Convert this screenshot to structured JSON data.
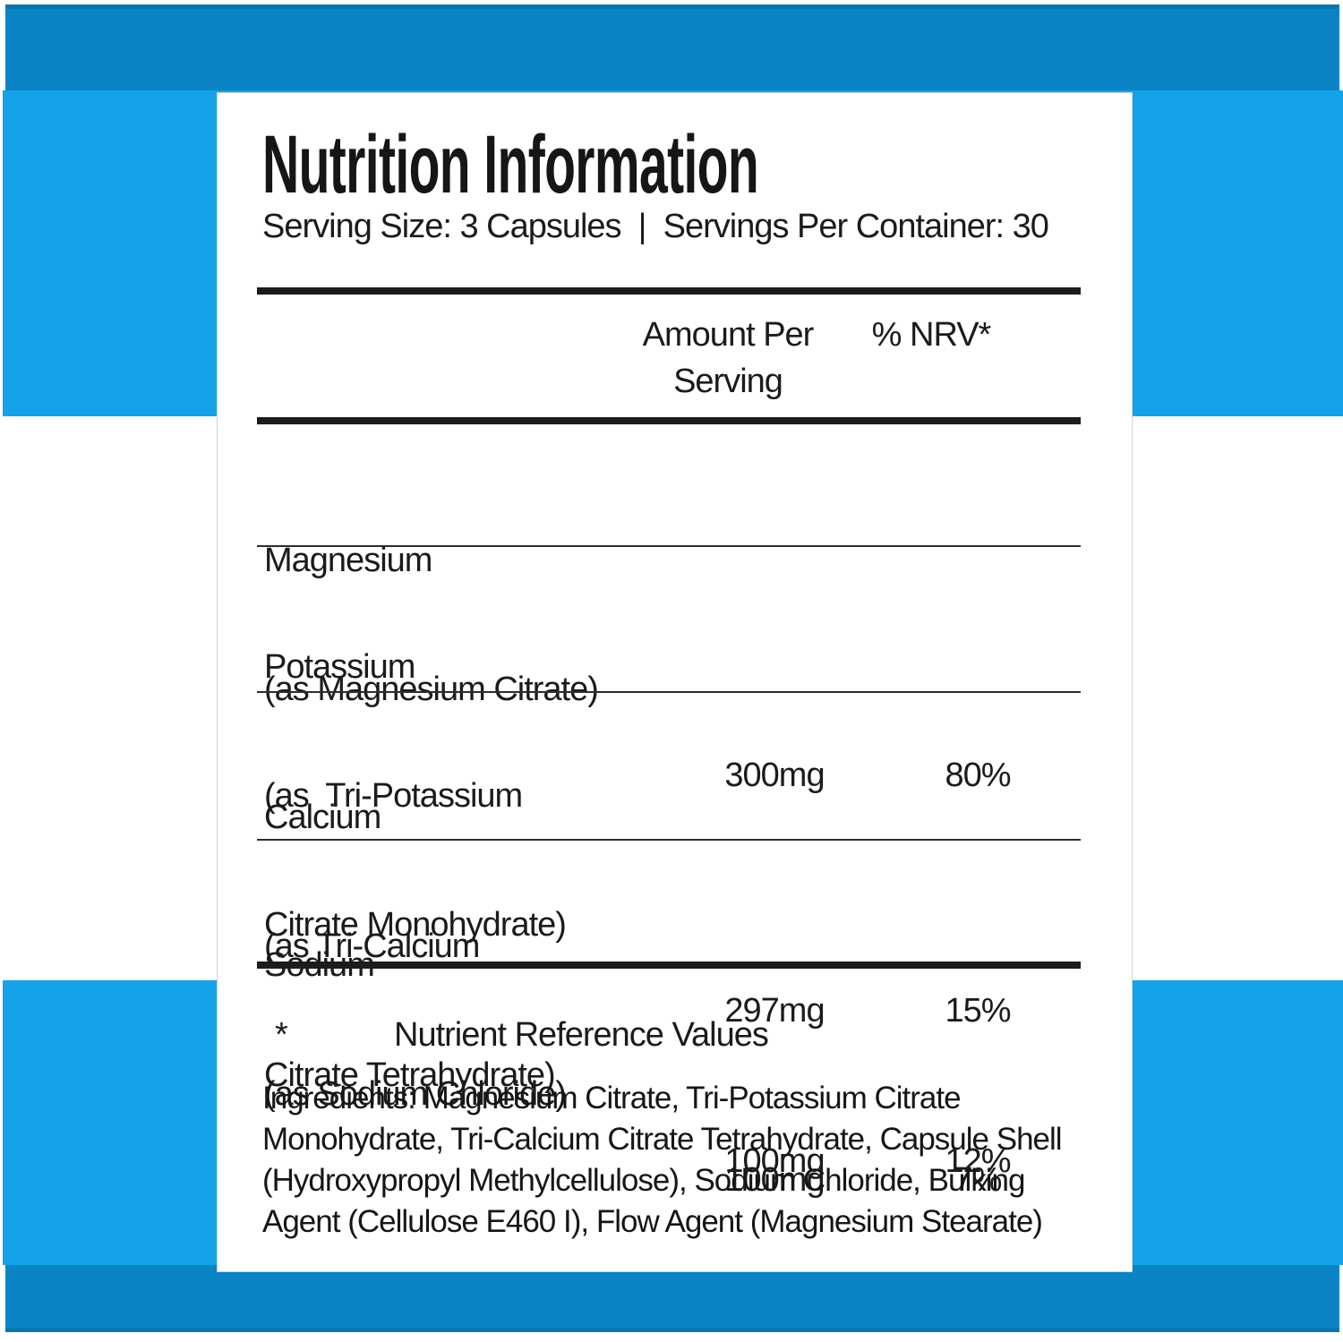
{
  "panel": {
    "title": "Nutrition Information",
    "serving_line": "Serving Size: 3 Capsules  |  Servings Per Container: 30",
    "table": {
      "header": {
        "amount_lines": [
          "Amount Per",
          "Serving"
        ],
        "nrv": "% NRV*"
      },
      "rows": [
        {
          "name_lines": [
            "Magnesium",
            "(as Magnesium Citrate)"
          ],
          "amount": "300mg",
          "nrv": "80%"
        },
        {
          "name_lines": [
            "Potassium",
            "(as  Tri-Potassium",
            "Citrate Monohydrate)"
          ],
          "amount": "297mg",
          "nrv": "15%"
        },
        {
          "name_lines": [
            "Calcium",
            "(as Tri-Calcium",
            "Citrate Tetrahydrate)"
          ],
          "amount": "100mg",
          "nrv": "12%"
        },
        {
          "name_lines": [
            "Sodium",
            "(as Sodium Chloride)"
          ],
          "amount": "100mg",
          "nrv": "7%"
        }
      ]
    },
    "footnote": {
      "marker": "*",
      "text": "Nutrient Reference Values"
    },
    "ingredients_lines": [
      "Ingredients: Magnesium Citrate, Tri-Potassium Citrate",
      "Monohydrate, Tri-Calcium Citrate Tetrahydrate, Capsule Shell",
      "(Hydroxypropyl Methylcellulose), Sodium Chloride, Bulking",
      "Agent (Cellulose E460 I), Flow Agent (Magnesium Stearate)"
    ]
  },
  "colors": {
    "band_dark": "#0a84c4",
    "band_dark_edge": "#0a78b0",
    "accent_bright": "#14a3e8",
    "rule_black": "#1c1c1a",
    "text": "#1b1b1b",
    "panel_border": "#cfd4d8"
  }
}
